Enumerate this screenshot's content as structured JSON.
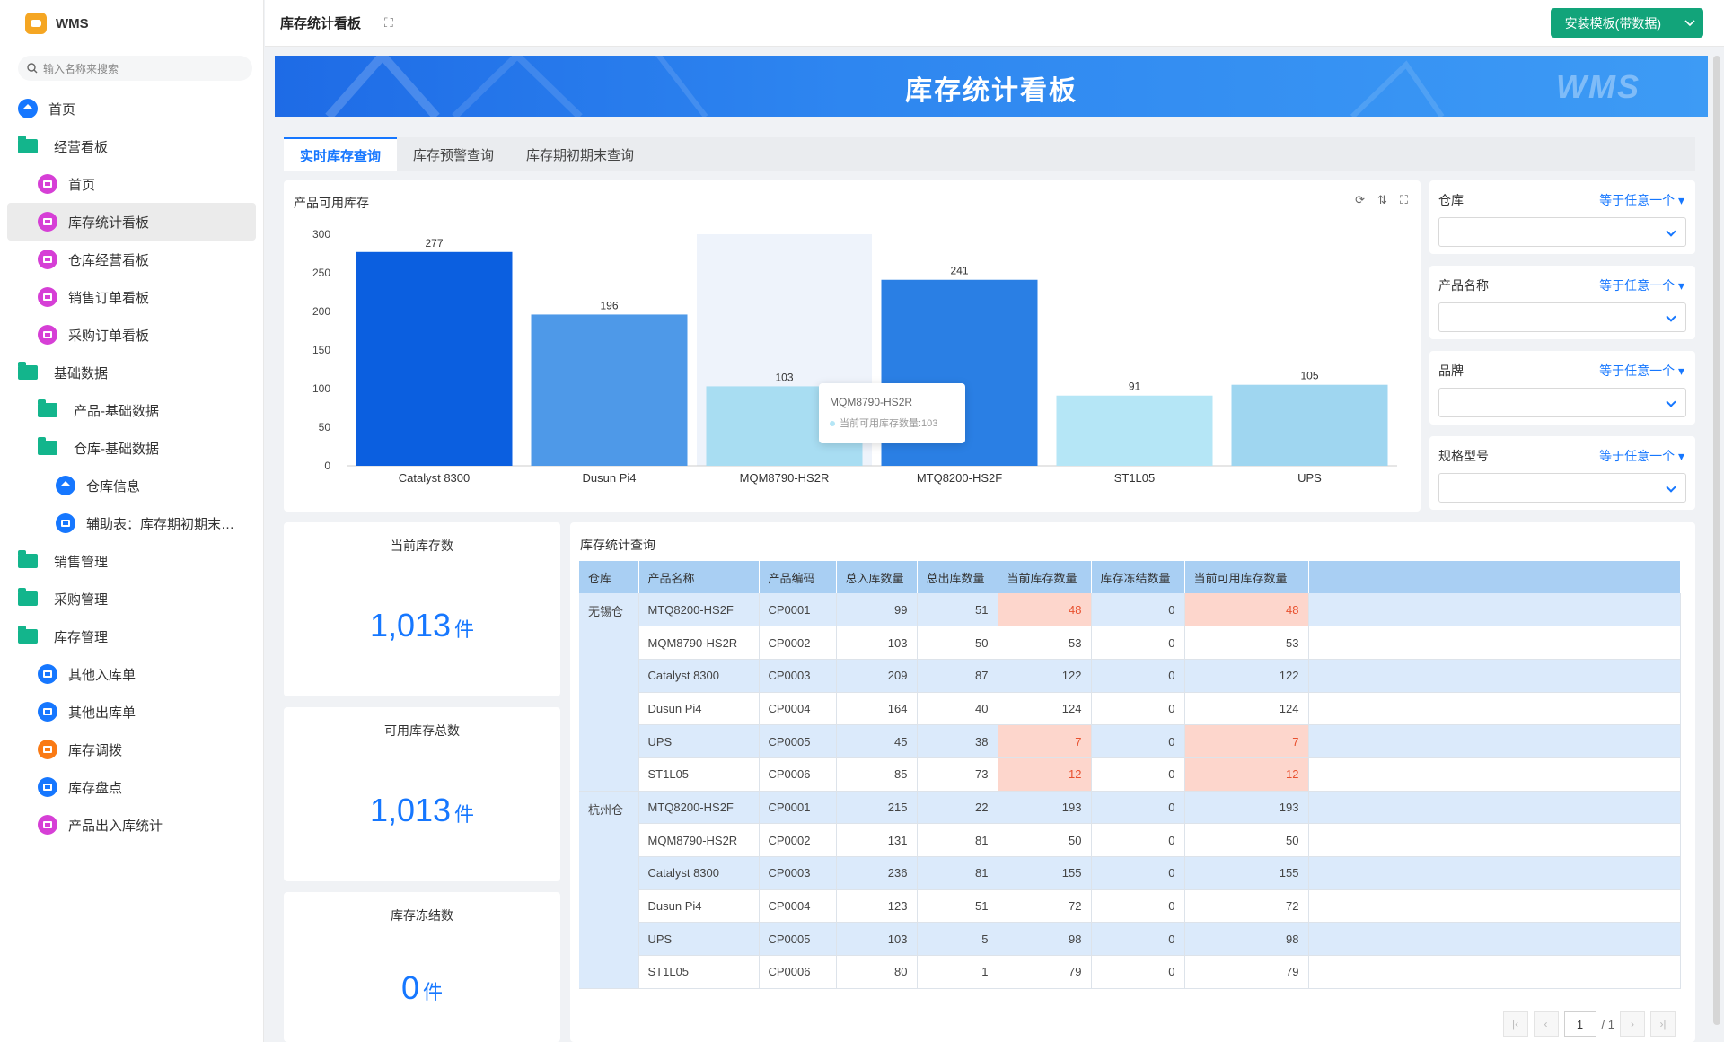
{
  "app": {
    "name": "WMS",
    "search_placeholder": "输入名称来搜索"
  },
  "sidebar": {
    "items": [
      {
        "label": "首页",
        "icon": "home-icon"
      },
      {
        "label": "经营看板",
        "icon": "folder-icon"
      },
      {
        "label": "首页",
        "icon": "dashboard-icon"
      },
      {
        "label": "库存统计看板",
        "icon": "dashboard-icon"
      },
      {
        "label": "仓库经营看板",
        "icon": "dashboard-icon"
      },
      {
        "label": "销售订单看板",
        "icon": "dashboard-icon"
      },
      {
        "label": "采购订单看板",
        "icon": "dashboard-icon"
      },
      {
        "label": "基础数据",
        "icon": "folder-icon"
      },
      {
        "label": "产品-基础数据",
        "icon": "folder-icon"
      },
      {
        "label": "仓库-基础数据",
        "icon": "folder-open-icon"
      },
      {
        "label": "仓库信息",
        "icon": "home-icon"
      },
      {
        "label": "辅助表：库存期初期末（...",
        "icon": "document-icon"
      },
      {
        "label": "销售管理",
        "icon": "folder-icon"
      },
      {
        "label": "采购管理",
        "icon": "folder-icon"
      },
      {
        "label": "库存管理",
        "icon": "folder-icon"
      },
      {
        "label": "其他入库单",
        "icon": "document-icon"
      },
      {
        "label": "其他出库单",
        "icon": "document-icon"
      },
      {
        "label": "库存调拨",
        "icon": "transfer-icon"
      },
      {
        "label": "库存盘点",
        "icon": "document-icon"
      },
      {
        "label": "产品出入库统计",
        "icon": "dashboard-icon"
      }
    ]
  },
  "header": {
    "title": "库存统计看板",
    "install_label": "安装模板(带数据)"
  },
  "banner": {
    "title": "库存统计看板",
    "watermark": "WMS"
  },
  "tabs": [
    {
      "label": "实时库存查询"
    },
    {
      "label": "库存预警查询"
    },
    {
      "label": "库存期初期末查询"
    }
  ],
  "chart": {
    "title": "产品可用库存"
  },
  "chart_data": {
    "type": "bar",
    "categories": [
      "Catalyst 8300",
      "Dusun Pi4",
      "MQM8790-HS2R",
      "MTQ8200-HS2F",
      "ST1L05",
      "UPS"
    ],
    "values": [
      277,
      196,
      103,
      241,
      91,
      105
    ],
    "bar_colors": [
      "#0b5fe0",
      "#4e99e8",
      "#a8ddf2",
      "#2a7fe4",
      "#b5e6f6",
      "#9fd6f0"
    ],
    "ylim": [
      0,
      300
    ],
    "yticks": [
      0,
      50,
      100,
      150,
      200,
      250,
      300
    ],
    "highlight_index": 2,
    "tooltip": {
      "title": "MQM8790-HS2R",
      "text": "当前可用库存数量:103"
    }
  },
  "filters": [
    {
      "label": "仓库",
      "op": "等于任意一个"
    },
    {
      "label": "产品名称",
      "op": "等于任意一个"
    },
    {
      "label": "品牌",
      "op": "等于任意一个"
    },
    {
      "label": "规格型号",
      "op": "等于任意一个"
    }
  ],
  "stats": [
    {
      "title": "当前库存数",
      "value": "1,013",
      "unit": "件"
    },
    {
      "title": "可用库存总数",
      "value": "1,013",
      "unit": "件"
    },
    {
      "title": "库存冻结数",
      "value": "0",
      "unit": "件"
    }
  ],
  "table": {
    "title": "库存统计查询",
    "columns": [
      "仓库",
      "产品名称",
      "产品编码",
      "总入库数量",
      "总出库数量",
      "当前库存数量",
      "库存冻结数量",
      "当前可用库存数量"
    ],
    "groups": [
      {
        "warehouse": "无锡仓",
        "rows": [
          [
            "MTQ8200-HS2F",
            "CP0001",
            "99",
            "51",
            "48",
            "0",
            "48"
          ],
          [
            "MQM8790-HS2R",
            "CP0002",
            "103",
            "50",
            "53",
            "0",
            "53"
          ],
          [
            "Catalyst 8300",
            "CP0003",
            "209",
            "87",
            "122",
            "0",
            "122"
          ],
          [
            "Dusun Pi4",
            "CP0004",
            "164",
            "40",
            "124",
            "0",
            "124"
          ],
          [
            "UPS",
            "CP0005",
            "45",
            "38",
            "7",
            "0",
            "7"
          ],
          [
            "ST1L05",
            "CP0006",
            "85",
            "73",
            "12",
            "0",
            "12"
          ]
        ],
        "warn_rows": [
          0,
          4,
          5
        ]
      },
      {
        "warehouse": "杭州仓",
        "rows": [
          [
            "MTQ8200-HS2F",
            "CP0001",
            "215",
            "22",
            "193",
            "0",
            "193"
          ],
          [
            "MQM8790-HS2R",
            "CP0002",
            "131",
            "81",
            "50",
            "0",
            "50"
          ],
          [
            "Catalyst 8300",
            "CP0003",
            "236",
            "81",
            "155",
            "0",
            "155"
          ],
          [
            "Dusun Pi4",
            "CP0004",
            "123",
            "51",
            "72",
            "0",
            "72"
          ],
          [
            "UPS",
            "CP0005",
            "103",
            "5",
            "98",
            "0",
            "98"
          ],
          [
            "ST1L05",
            "CP0006",
            "80",
            "1",
            "79",
            "0",
            "79"
          ]
        ],
        "warn_rows": []
      }
    ]
  },
  "pager": {
    "page": "1",
    "total": "/ 1"
  },
  "colors": {
    "accent": "#1677ff",
    "install": "#12a47a",
    "warn_bg": "#fdd6cc",
    "warn_text": "#e8502e"
  }
}
